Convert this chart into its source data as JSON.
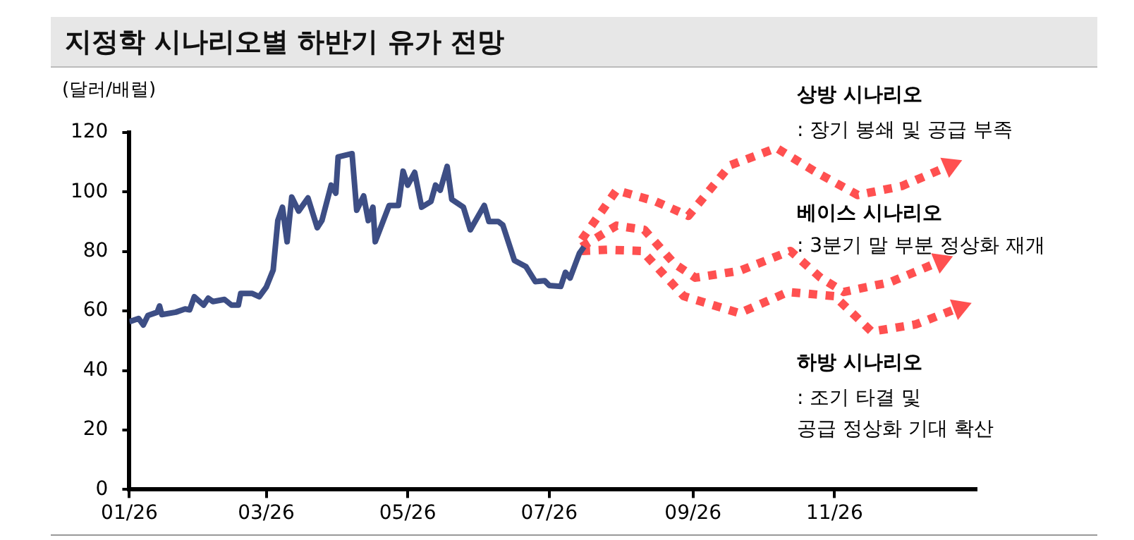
{
  "chart_data": {
    "type": "line",
    "title": "지정학 시나리오별 하반기 유가 전망",
    "ylabel": "(달러/배럴)",
    "xlim": [
      "2026-01-01",
      "2027-01-01"
    ],
    "xticks": [
      {
        "value": "2026-01-01",
        "label": "01/26"
      },
      {
        "value": "2026-03-01",
        "label": "03/26"
      },
      {
        "value": "2026-05-01",
        "label": "05/26"
      },
      {
        "value": "2026-07-01",
        "label": "07/26"
      },
      {
        "value": "2026-09-01",
        "label": "09/26"
      },
      {
        "value": "2026-11-01",
        "label": "11/26"
      }
    ],
    "ylim": [
      0,
      120
    ],
    "yticks": [
      0,
      20,
      40,
      60,
      80,
      100,
      120
    ],
    "grid": false,
    "legend": false,
    "marker": "none",
    "annotations": [
      ": 장기 봉쇄 및 공급 부족",
      ": 3분기 말 부분 정상화 재개",
      ": 조기 타결 및\n공급 정상화 기대 확산"
    ],
    "series": [
      {
        "color": "#3d4e85",
        "line_style": "solid",
        "x": [
          "2026-01-01",
          "2026-01-05",
          "2026-01-07",
          "2026-01-09",
          "2026-01-13",
          "2026-01-14",
          "2026-01-15",
          "2026-01-21",
          "2026-01-25",
          "2026-01-27",
          "2026-01-29",
          "2026-02-02",
          "2026-02-04",
          "2026-02-06",
          "2026-02-11",
          "2026-02-14",
          "2026-02-17",
          "2026-02-18",
          "2026-02-23",
          "2026-02-26",
          "2026-03-01",
          "2026-03-04",
          "2026-03-06",
          "2026-03-08",
          "2026-03-10",
          "2026-03-12",
          "2026-03-15",
          "2026-03-19",
          "2026-03-23",
          "2026-03-25",
          "2026-03-29",
          "2026-03-31",
          "2026-04-01",
          "2026-04-07",
          "2026-04-09",
          "2026-04-12",
          "2026-04-14",
          "2026-04-16",
          "2026-04-17",
          "2026-04-23",
          "2026-04-27",
          "2026-04-29",
          "2026-05-01",
          "2026-05-04",
          "2026-05-07",
          "2026-05-11",
          "2026-05-13",
          "2026-05-15",
          "2026-05-18",
          "2026-05-20",
          "2026-05-25",
          "2026-05-28",
          "2026-06-03",
          "2026-06-05",
          "2026-06-09",
          "2026-06-11",
          "2026-06-16",
          "2026-06-21",
          "2026-06-25",
          "2026-06-29",
          "2026-07-01",
          "2026-07-06",
          "2026-07-08",
          "2026-07-10",
          "2026-07-14",
          "2026-07-16"
        ],
        "values": [
          56.4,
          57.5,
          55.3,
          58.5,
          59.6,
          61.7,
          58.8,
          59.6,
          60.7,
          60.4,
          64.8,
          62,
          64.3,
          63.2,
          63.9,
          62,
          62,
          65.9,
          65.9,
          64.8,
          68,
          73.8,
          90.4,
          94.9,
          83.3,
          98.3,
          93.6,
          98,
          88,
          90.4,
          102.3,
          99.6,
          111.8,
          112.9,
          93.9,
          98.7,
          90.4,
          94.9,
          83.3,
          95.5,
          95.5,
          107,
          102.3,
          106.6,
          94.9,
          96.8,
          102.3,
          100.6,
          108.6,
          97.5,
          94.9,
          87.3,
          95.5,
          90.1,
          90.1,
          88.9,
          77,
          74.9,
          69.9,
          70.2,
          68.6,
          68.3,
          73,
          71.1,
          79.4,
          81.6
        ]
      },
      {
        "name": "상방 시나리오",
        "color": "#ff5050",
        "line_style": "dotted",
        "x": [
          "2026-07-15",
          "2026-07-30",
          "2026-08-16",
          "2026-08-30",
          "2026-09-17",
          "2026-10-07",
          "2026-10-24",
          "2026-11-11",
          "2026-11-30",
          "2026-12-21"
        ],
        "values": [
          84,
          100.6,
          96.8,
          92,
          109,
          114.8,
          106.7,
          99,
          102,
          109
        ]
      },
      {
        "name": "베이스 시나리오",
        "color": "#ff5050",
        "line_style": "dotted",
        "x": [
          "2026-07-15",
          "2026-07-30",
          "2026-08-11",
          "2026-08-24",
          "2026-09-02",
          "2026-09-21",
          "2026-10-13",
          "2026-10-26",
          "2026-11-05",
          "2026-11-25",
          "2026-12-17"
        ],
        "values": [
          81.6,
          88.7,
          87.3,
          75.9,
          71.2,
          73.5,
          80.2,
          71.2,
          66.4,
          69.7,
          76.8
        ]
      },
      {
        "name": "하방 시나리오",
        "color": "#ff5050",
        "line_style": "dotted",
        "x": [
          "2026-07-15",
          "2026-07-26",
          "2026-08-10",
          "2026-08-28",
          "2026-09-21",
          "2026-10-12",
          "2026-11-01",
          "2026-11-17",
          "2026-12-06",
          "2026-12-25"
        ],
        "values": [
          80.2,
          80.6,
          80.2,
          65,
          59.3,
          66.4,
          65,
          53.1,
          55.5,
          61.2
        ]
      }
    ]
  }
}
